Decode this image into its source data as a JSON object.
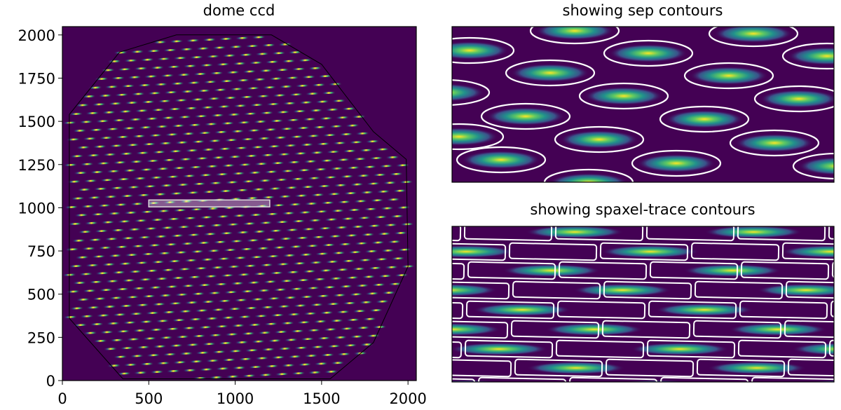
{
  "chart_data": [
    {
      "type": "heatmap",
      "title": "dome ccd",
      "xlabel": "",
      "ylabel": "",
      "xlim": [
        0,
        2048
      ],
      "ylim": [
        0,
        2048
      ],
      "xticks": [
        0,
        500,
        1000,
        1500,
        2000
      ],
      "yticks": [
        0,
        250,
        500,
        750,
        1000,
        1250,
        1500,
        1750,
        2000
      ],
      "colormap": "viridis",
      "background_color": "#440154",
      "outline_polygon": [
        [
          40,
          1540
        ],
        [
          330,
          1900
        ],
        [
          660,
          2000
        ],
        [
          1210,
          2000
        ],
        [
          1500,
          1830
        ],
        [
          1800,
          1440
        ],
        [
          1990,
          1280
        ],
        [
          2000,
          660
        ],
        [
          1800,
          220
        ],
        [
          1550,
          10
        ],
        [
          350,
          10
        ],
        [
          40,
          360
        ]
      ],
      "highlight_box": {
        "x": [
          500,
          1200
        ],
        "y": [
          1005,
          1045
        ]
      },
      "trace_rows": {
        "y_start": 25,
        "y_end": 2030,
        "count": 42,
        "slope": 0.05
      }
    },
    {
      "type": "heatmap",
      "title": "showing sep contours",
      "colormap": "viridis",
      "contour_shape": "ellipse",
      "contour_color": "#ffffff",
      "spots": [
        {
          "x": 820,
          "y": 44
        },
        {
          "x": 1075,
          "y": 48
        },
        {
          "x": 670,
          "y": 72
        },
        {
          "x": 925,
          "y": 76
        },
        {
          "x": 1180,
          "y": 80
        },
        {
          "x": 785,
          "y": 104
        },
        {
          "x": 1040,
          "y": 108
        },
        {
          "x": 635,
          "y": 132
        },
        {
          "x": 890,
          "y": 137
        },
        {
          "x": 1140,
          "y": 141
        },
        {
          "x": 750,
          "y": 166
        },
        {
          "x": 1005,
          "y": 170
        },
        {
          "x": 655,
          "y": 195
        },
        {
          "x": 855,
          "y": 199
        },
        {
          "x": 1105,
          "y": 204
        },
        {
          "x": 715,
          "y": 228
        },
        {
          "x": 965,
          "y": 233
        },
        {
          "x": 1195,
          "y": 237
        },
        {
          "x": 840,
          "y": 260
        }
      ]
    },
    {
      "type": "heatmap",
      "title": "showing spaxel-trace contours",
      "colormap": "viridis",
      "contour_shape": "rounded-rect",
      "contour_color": "#ffffff",
      "rows": [
        {
          "y": 331,
          "centers": [
            820,
            1075
          ]
        },
        {
          "y": 359,
          "centers": [
            665,
            928,
            1185
          ]
        },
        {
          "y": 386,
          "centers": [
            787,
            1045
          ]
        },
        {
          "y": 414,
          "centers": [
            640,
            888,
            1150
          ]
        },
        {
          "y": 442,
          "centers": [
            745,
            1005
          ]
        },
        {
          "y": 470,
          "centers": [
            645,
            848,
            1110
          ]
        },
        {
          "y": 498,
          "centers": [
            712,
            970,
            1200
          ]
        },
        {
          "y": 525,
          "centers": [
            822,
            1080
          ]
        },
        {
          "y": 551,
          "centers": [
            665,
            935,
            1200
          ]
        }
      ]
    }
  ]
}
